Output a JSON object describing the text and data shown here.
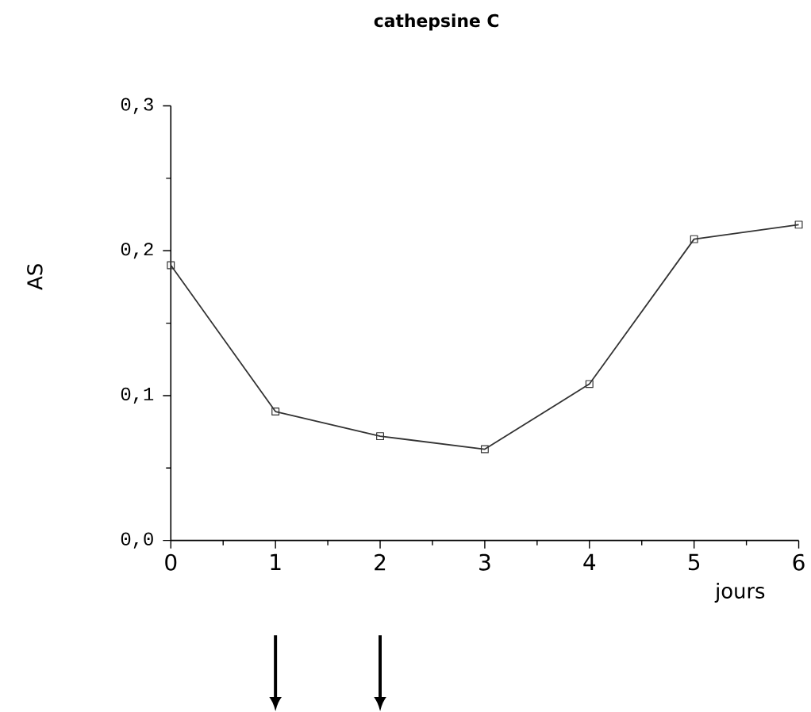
{
  "chart_data": {
    "type": "line",
    "title": "cathepsine C",
    "xlabel": "jours",
    "ylabel": "AS",
    "x": [
      0,
      1,
      2,
      3,
      4,
      5,
      6
    ],
    "series": [
      {
        "color": "#333333",
        "values": [
          0.19,
          0.089,
          0.072,
          0.063,
          0.108,
          0.208,
          0.218
        ]
      }
    ],
    "xlim": [
      0,
      6
    ],
    "ylim": [
      0,
      0.3
    ],
    "xticks": [
      0,
      1,
      2,
      3,
      4,
      5,
      6
    ],
    "yticks": [
      {
        "value": 0,
        "label": "0,0"
      },
      {
        "value": 0.1,
        "label": "0,1"
      },
      {
        "value": 0.2,
        "label": "0,2"
      },
      {
        "value": 0.3,
        "label": "0,3"
      }
    ],
    "grid": false,
    "marker": "square",
    "line_style": "solid"
  }
}
